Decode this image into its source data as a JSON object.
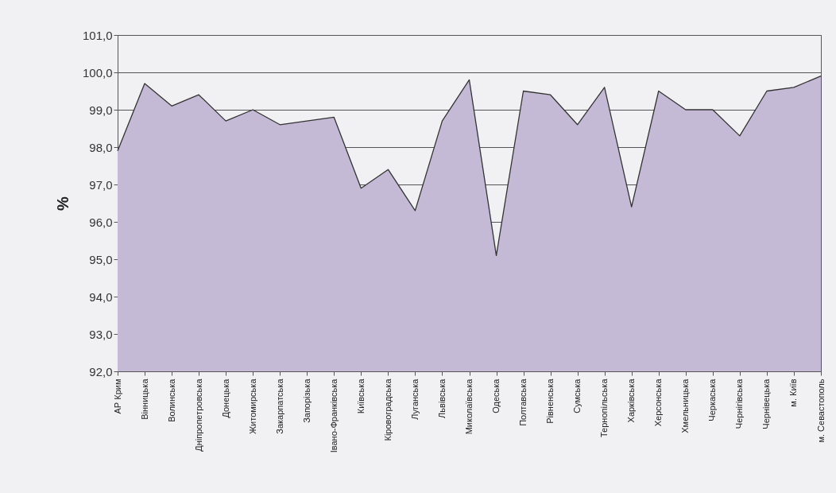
{
  "chart_data": {
    "type": "area",
    "ylabel": "%",
    "categories": [
      "АР Крим",
      "Вінницька",
      "Волинська",
      "Дніпропетровська",
      "Донецька",
      "Житомирська",
      "Закарпатська",
      "Запорізька",
      "Івано-Франківська",
      "Київська",
      "Кіровоградська",
      "Луганська",
      "Львівська",
      "Миколаївська",
      "Одеська",
      "Полтавська",
      "Рівненська",
      "Сумська",
      "Тернопільська",
      "Харківська",
      "Херсонська",
      "Хмельницька",
      "Черкаська",
      "Чернігівська",
      "Чернівецька",
      "м. Київ",
      "м. Севастополь"
    ],
    "values": [
      97.9,
      99.7,
      99.1,
      99.4,
      98.7,
      99.0,
      98.6,
      98.7,
      98.8,
      96.9,
      97.4,
      96.3,
      98.7,
      99.8,
      95.1,
      99.5,
      99.4,
      98.6,
      99.6,
      96.4,
      99.5,
      99.0,
      99.0,
      98.3,
      99.5,
      99.6,
      99.9
    ],
    "color": "#c5bad5",
    "ylim": [
      92,
      101
    ],
    "yticks": [
      {
        "value": 92,
        "label": "92,0"
      },
      {
        "value": 93,
        "label": "93,0"
      },
      {
        "value": 94,
        "label": "94,0"
      },
      {
        "value": 95,
        "label": "95,0"
      },
      {
        "value": 96,
        "label": "96,0"
      },
      {
        "value": 97,
        "label": "97,0"
      },
      {
        "value": 98,
        "label": "98,0"
      },
      {
        "value": 99,
        "label": "99,0"
      },
      {
        "value": 100,
        "label": "100,0"
      },
      {
        "value": 101,
        "label": "101,0"
      }
    ],
    "grid": true
  }
}
